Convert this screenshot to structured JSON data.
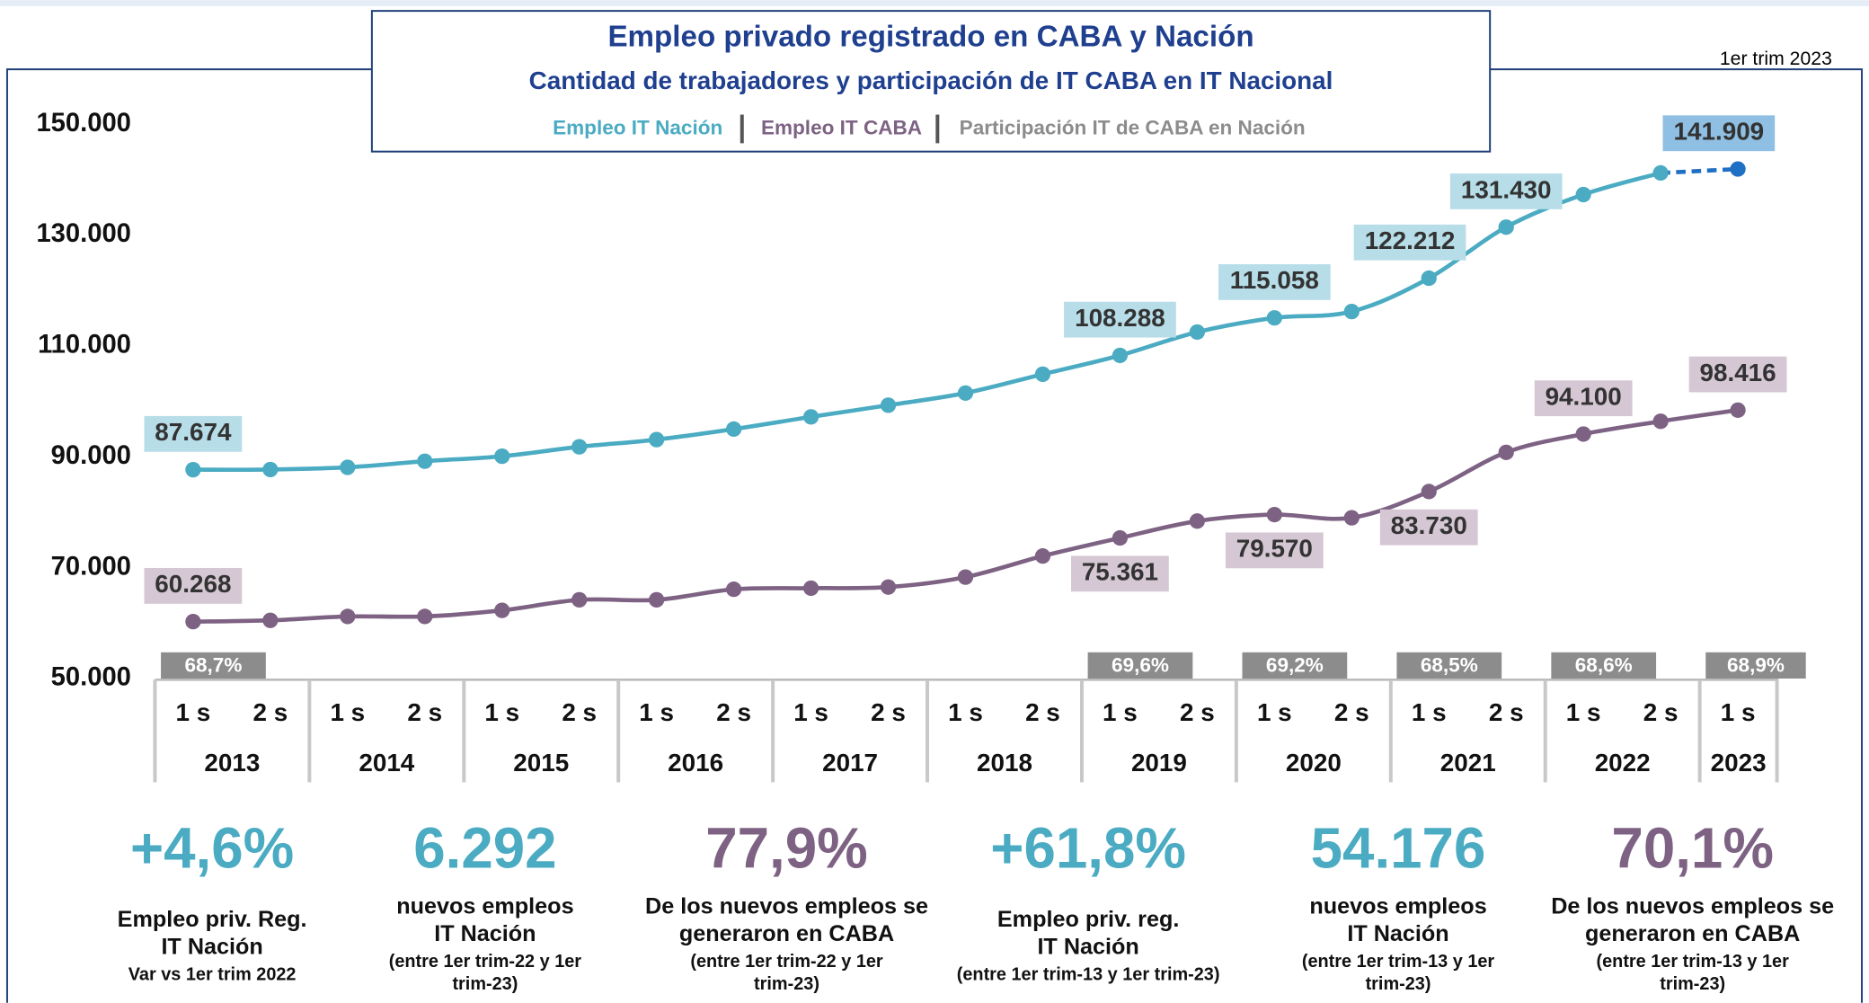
{
  "chart_data": {
    "type": "line",
    "title": "Empleo privado registrado en CABA y Nación",
    "subtitle": "Cantidad de trabajadores y participación de IT CABA en IT Nacional",
    "annotation": "1er trim 2023",
    "categories": [
      "1 s",
      "2 s",
      "1 s",
      "2 s",
      "1 s",
      "2 s",
      "1 s",
      "2 s",
      "1 s",
      "2 s",
      "1 s",
      "2 s",
      "1 s",
      "2 s",
      "1 s",
      "2 s",
      "1 s",
      "2 s",
      "1 s",
      "2 s",
      "1 s"
    ],
    "years": [
      "2013",
      "2014",
      "2015",
      "2016",
      "2017",
      "2018",
      "2019",
      "2020",
      "2021",
      "2022",
      "2023"
    ],
    "ylim": [
      50000,
      150000
    ],
    "yticks": [
      {
        "value": 50000,
        "label": "50.000"
      },
      {
        "value": 70000,
        "label": "70.000"
      },
      {
        "value": 90000,
        "label": "90.000"
      },
      {
        "value": 110000,
        "label": "110.000"
      },
      {
        "value": 130000,
        "label": "130.000"
      },
      {
        "value": 150000,
        "label": "150.000"
      }
    ],
    "series": [
      {
        "name": "Empleo IT Nación",
        "color": "#4aabc2",
        "values": [
          87674,
          87700,
          88100,
          89200,
          90100,
          91800,
          93100,
          95000,
          97200,
          99300,
          101500,
          104900,
          108288,
          112500,
          115058,
          116200,
          122212,
          131430,
          137300,
          141200,
          141909
        ],
        "value_labels": [
          "87.674",
          null,
          null,
          null,
          null,
          null,
          null,
          null,
          null,
          null,
          null,
          null,
          "108.288",
          null,
          "115.058",
          null,
          "122.212",
          "131.430",
          null,
          null,
          "141.909"
        ]
      },
      {
        "name": "Empleo IT CABA",
        "color": "#7d6283",
        "values": [
          60268,
          60500,
          61200,
          61200,
          62300,
          64200,
          64200,
          66100,
          66300,
          66500,
          68300,
          72100,
          75361,
          78400,
          79570,
          79000,
          83730,
          90800,
          94100,
          96400,
          98416
        ],
        "value_labels": [
          "60.268",
          null,
          null,
          null,
          null,
          null,
          null,
          null,
          null,
          null,
          null,
          null,
          "75.361",
          null,
          "79.570",
          null,
          "83.730",
          null,
          "94.100",
          null,
          "98.416"
        ]
      }
    ],
    "share_series": {
      "name": "Participación IT de CABA en Nación",
      "color": "#8c8c8c",
      "values": [
        68.7,
        null,
        null,
        null,
        null,
        null,
        69.6,
        69.2,
        68.5,
        68.6,
        68.9
      ],
      "value_labels": [
        "68,7%",
        null,
        null,
        null,
        null,
        null,
        "69,6%",
        "69,2%",
        "68,5%",
        "68,6%",
        "68,9%"
      ]
    }
  },
  "stats": [
    {
      "value": "+4,6%",
      "color": "#4aabc2",
      "lines": [
        "Empleo priv. Reg.",
        "IT Nación"
      ],
      "notes": [
        "Var vs 1er trim 2022"
      ]
    },
    {
      "value": "6.292",
      "color": "#4aabc2",
      "lines": [
        "nuevos empleos",
        "IT Nación"
      ],
      "notes": [
        "(entre 1er trim-22 y 1er",
        "trim-23)"
      ]
    },
    {
      "value": "77,9%",
      "color": "#7d6283",
      "lines": [
        "De los nuevos empleos se",
        "generaron en CABA"
      ],
      "notes": [
        "(entre 1er trim-22 y 1er",
        "trim-23)"
      ]
    },
    {
      "value": "+61,8%",
      "color": "#4aabc2",
      "lines": [
        "Empleo priv. reg.",
        "IT Nación"
      ],
      "notes": [
        "(entre 1er trim-13 y 1er trim-23)"
      ]
    },
    {
      "value": "54.176",
      "color": "#4aabc2",
      "lines": [
        "nuevos empleos",
        "IT Nación"
      ],
      "notes": [
        "(entre 1er trim-13 y 1er",
        "trim-23)"
      ]
    },
    {
      "value": "70,1%",
      "color": "#7d6283",
      "lines": [
        "De los nuevos empleos se",
        "generaron en CABA"
      ],
      "notes": [
        "(entre 1er trim-13 y 1er",
        "trim-23)"
      ]
    }
  ]
}
